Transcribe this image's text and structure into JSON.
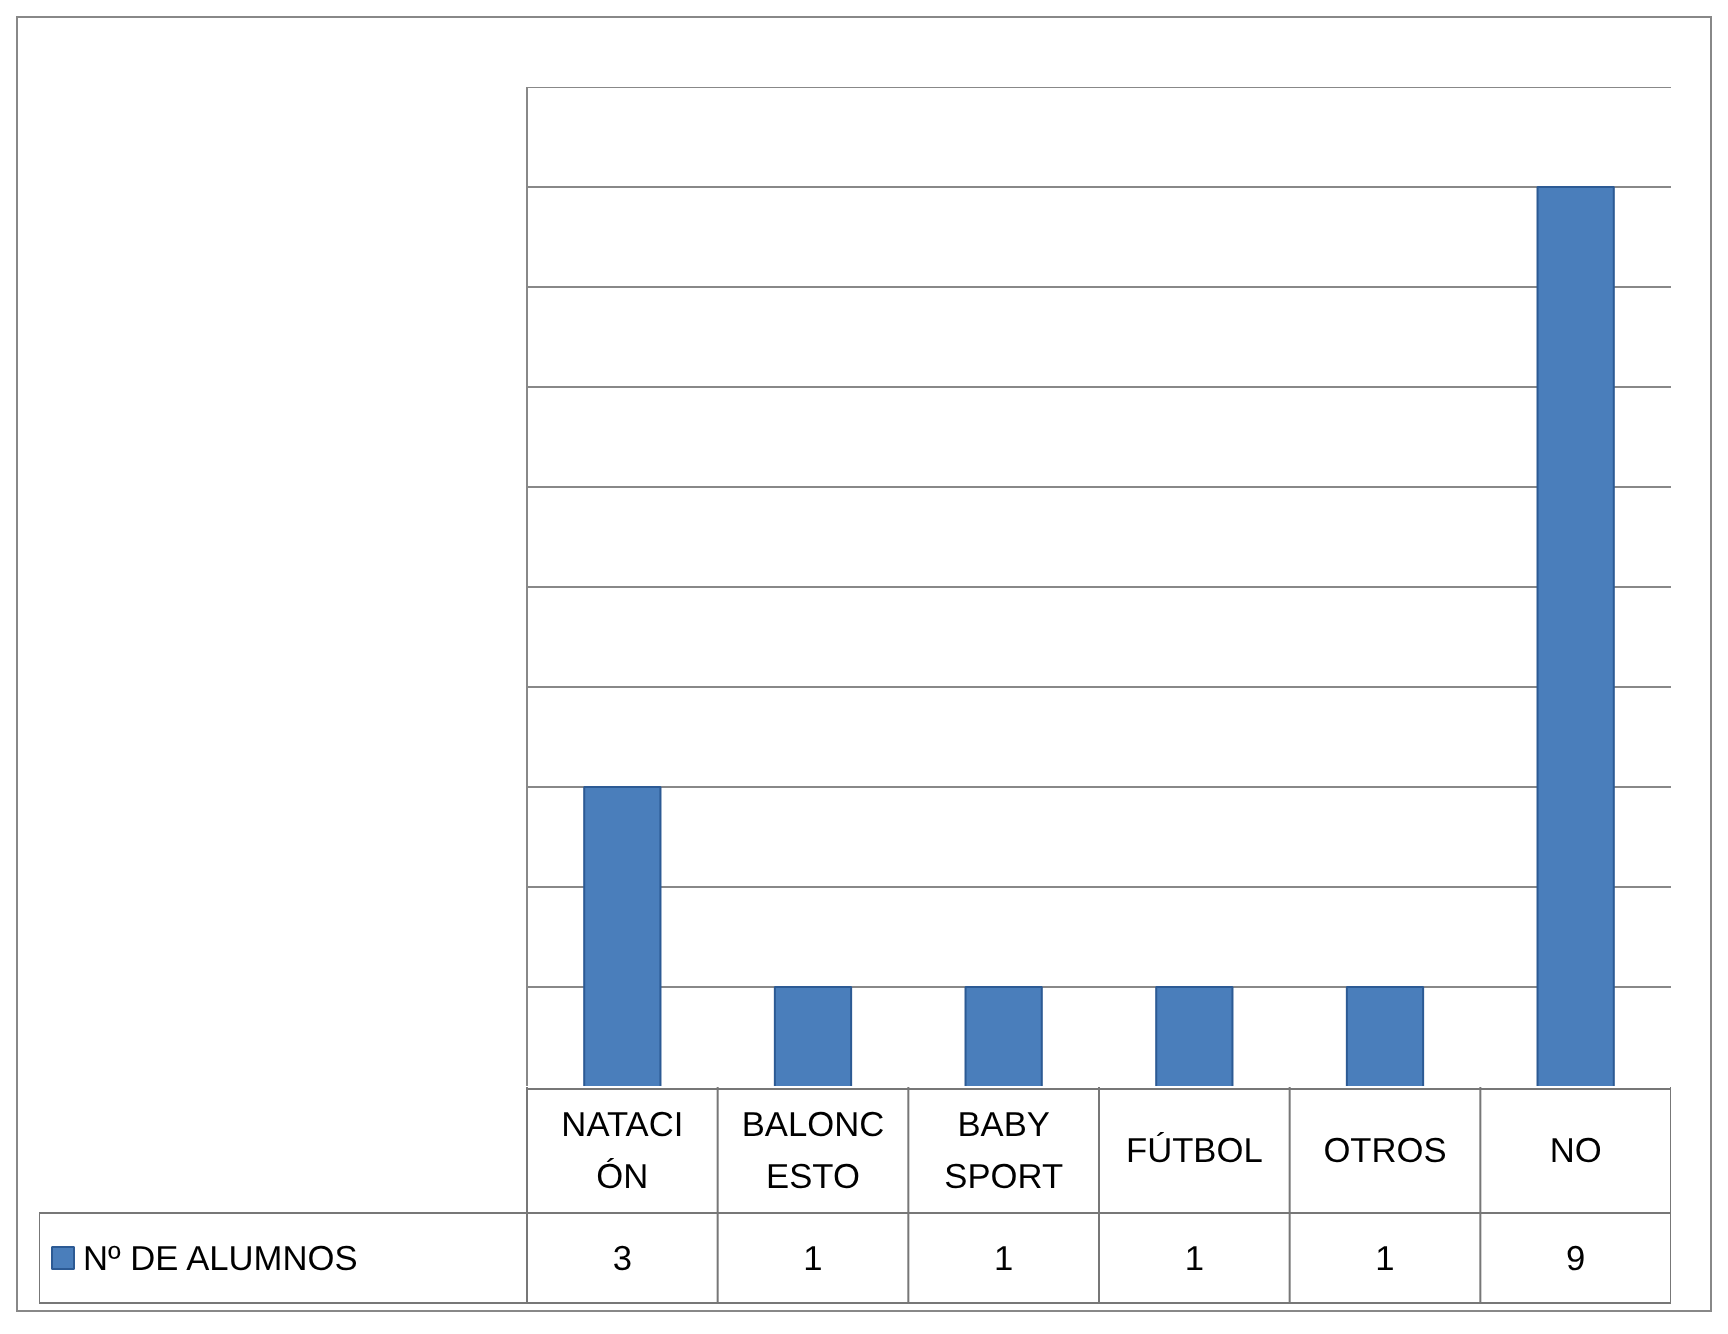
{
  "chart_data": {
    "type": "bar",
    "categories": [
      "NATACIÓN",
      "BALONCESTO",
      "BABY SPORT",
      "FÚTBOL",
      "OTROS",
      "NO"
    ],
    "series": [
      {
        "name": "Nº DE ALUMNOS",
        "color": "#4a7ebb",
        "values": [
          3,
          1,
          1,
          1,
          1,
          9
        ]
      }
    ],
    "ylim": [
      0,
      10
    ],
    "yticks": [
      0,
      1,
      2,
      3,
      4,
      5,
      6,
      7,
      8,
      9,
      10
    ],
    "grid": "y",
    "tick_labels": false,
    "data_labels": true,
    "legend": "bottom left"
  }
}
